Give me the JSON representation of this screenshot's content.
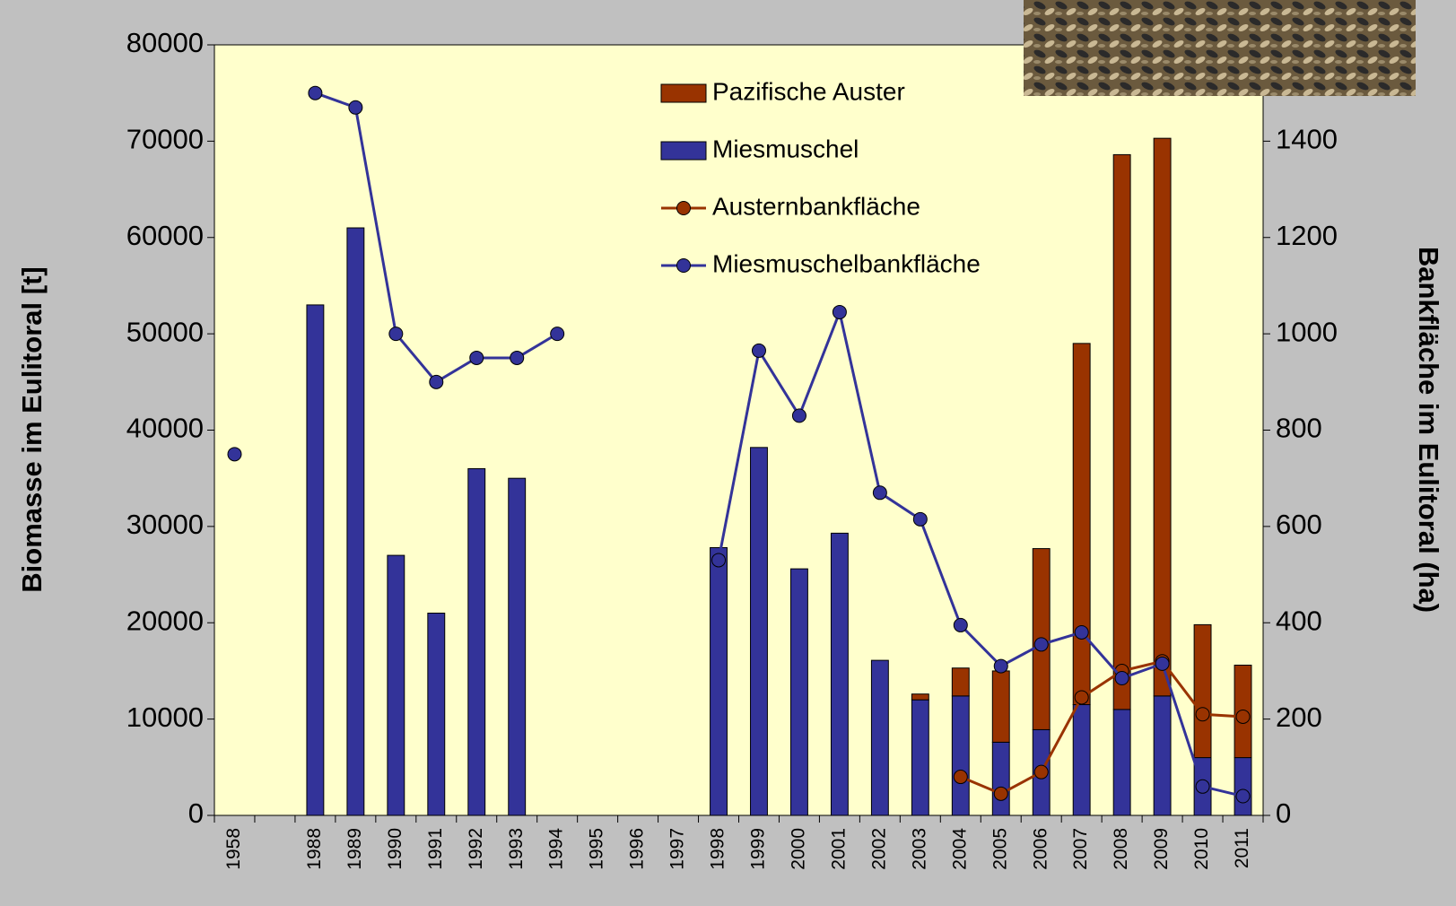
{
  "chart_data": {
    "type": "bar",
    "categories": [
      "1958",
      null,
      "1988",
      "1989",
      "1990",
      "1991",
      "1992",
      "1993",
      "1994",
      "1995",
      "1996",
      "1997",
      "1998",
      "1999",
      "2000",
      "2001",
      "2002",
      "2003",
      "2004",
      "2005",
      "2006",
      "2007",
      "2008",
      "2009",
      "2010",
      "2011"
    ],
    "y_label": "Biomasse im Eulitoral [t]",
    "y2_label": "Bankfläche im Eulitoral (ha)",
    "ylim": [
      0,
      80000
    ],
    "yticks": [
      0,
      10000,
      20000,
      30000,
      40000,
      50000,
      60000,
      70000,
      80000
    ],
    "y2lim": [
      0,
      1600
    ],
    "y2ticks": [
      0,
      200,
      400,
      600,
      800,
      1000,
      1200,
      1400
    ],
    "stacked": true,
    "series": [
      {
        "name": "Pazifische Auster",
        "type": "bar",
        "color": "#993300",
        "values": [
          null,
          null,
          null,
          null,
          null,
          null,
          null,
          null,
          null,
          null,
          null,
          null,
          null,
          null,
          null,
          null,
          null,
          600,
          2900,
          7400,
          18800,
          37500,
          57600,
          57900,
          13800,
          9600
        ]
      },
      {
        "name": "Miesmuschel",
        "type": "bar",
        "color": "#333399",
        "values": [
          null,
          null,
          53000,
          61000,
          27000,
          21000,
          36000,
          35000,
          null,
          null,
          null,
          null,
          27800,
          38200,
          25600,
          29300,
          16100,
          12000,
          12400,
          7600,
          8900,
          11500,
          11000,
          12400,
          6000,
          6000
        ]
      },
      {
        "name": "Austernbankfläche",
        "type": "line",
        "axis": "y2",
        "color": "#993300",
        "values": [
          null,
          null,
          null,
          null,
          null,
          null,
          null,
          null,
          null,
          null,
          null,
          null,
          null,
          null,
          null,
          null,
          null,
          null,
          80,
          45,
          90,
          245,
          300,
          320,
          210,
          205
        ]
      },
      {
        "name": "Miesmuschelbankfläche",
        "type": "line",
        "axis": "y2",
        "color": "#333399",
        "values": [
          750,
          null,
          1500,
          1470,
          1000,
          900,
          950,
          950,
          1000,
          null,
          null,
          null,
          530,
          965,
          830,
          1045,
          670,
          615,
          395,
          310,
          355,
          380,
          285,
          315,
          60,
          40
        ]
      }
    ]
  }
}
